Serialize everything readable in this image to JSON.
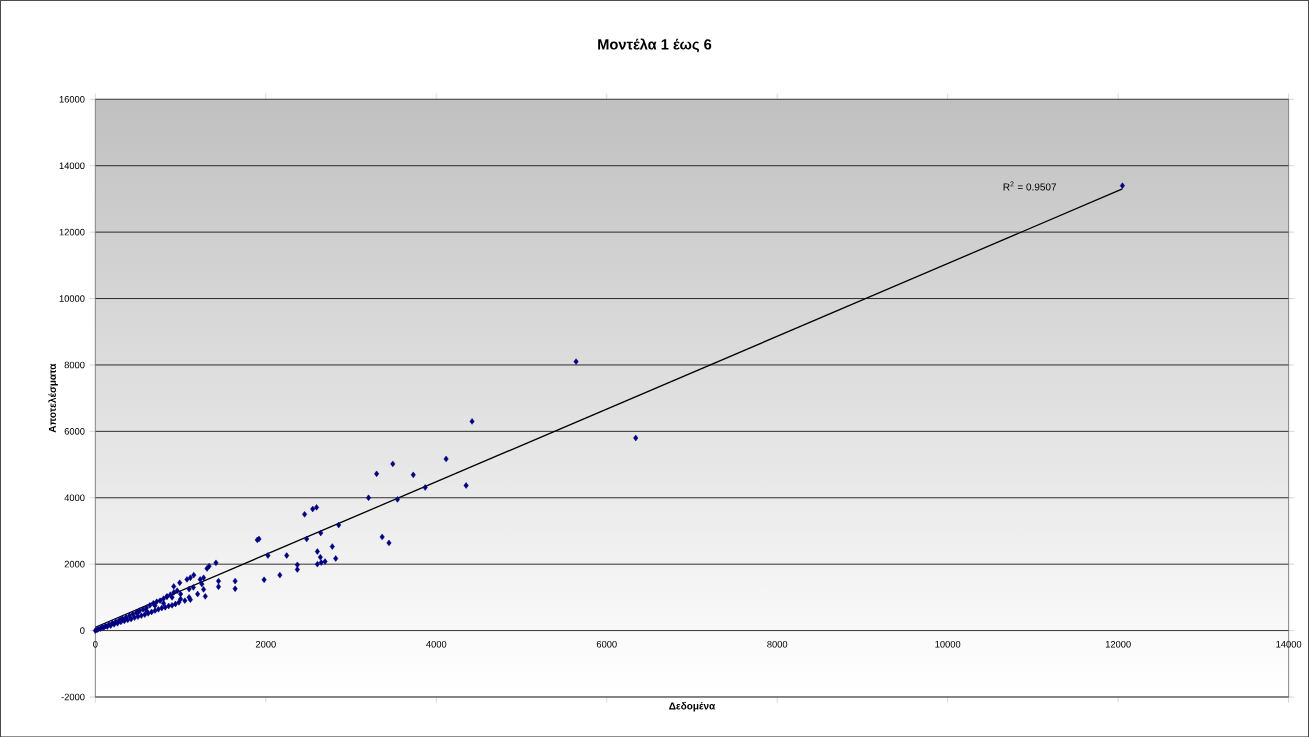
{
  "chart_data": {
    "type": "scatter",
    "title": "Μοντέλα 1 έως 6",
    "xlabel": "Δεδομένα",
    "ylabel": "Αποτελέσματα",
    "xlim": [
      0,
      14000
    ],
    "ylim": [
      -2000,
      16000
    ],
    "xticks": [
      0,
      2000,
      4000,
      6000,
      8000,
      10000,
      12000,
      14000
    ],
    "yticks": [
      -2000,
      0,
      2000,
      4000,
      6000,
      8000,
      10000,
      12000,
      14000,
      16000
    ],
    "grid": "y",
    "annotations": [
      "R$^{2}$ = 0.9507"
    ],
    "series": [
      {
        "marker": "diamond",
        "color": "#000080",
        "x": [
          12050,
          5640,
          6340,
          4420,
          4115,
          3490,
          3300,
          3730,
          4350,
          3870,
          3545,
          3205,
          2595,
          2550,
          2455,
          2855,
          2645,
          2480,
          1920,
          1900,
          3365,
          3445,
          2025,
          2245,
          2780,
          2605,
          2640,
          2820,
          2695,
          2650,
          2605,
          2370,
          2370,
          2165,
          1980,
          1415,
          1335,
          1310,
          990,
          1075,
          1115,
          1155,
          1230,
          1270,
          1445,
          1445,
          1640,
          1640,
          1270,
          1290,
          1115,
          920,
          840,
          20,
          40,
          60,
          80,
          100,
          120,
          140,
          160,
          180,
          200,
          220,
          240,
          260,
          280,
          300,
          320,
          340,
          360,
          380,
          400,
          420,
          440,
          460,
          480,
          500,
          520,
          540,
          560,
          580,
          600,
          620,
          640,
          660,
          680,
          700,
          720,
          740,
          760,
          780,
          800,
          820,
          840,
          860,
          880,
          900,
          920,
          940,
          960,
          980,
          1000,
          1050,
          1100,
          1150,
          1200,
          1250,
          1100,
          1000,
          900,
          700,
          500,
          300,
          600,
          800,
          0
        ],
        "values": [
          13400,
          8100,
          5800,
          6300,
          5170,
          5020,
          4720,
          4690,
          4370,
          4310,
          3950,
          4000,
          3710,
          3660,
          3500,
          3180,
          2940,
          2760,
          2760,
          2730,
          2820,
          2640,
          2260,
          2260,
          2530,
          2380,
          2210,
          2170,
          2080,
          2050,
          2000,
          1980,
          1840,
          1670,
          1530,
          2040,
          1940,
          1870,
          1440,
          1540,
          1590,
          1670,
          1540,
          1590,
          1490,
          1320,
          1490,
          1260,
          1240,
          1030,
          930,
          1330,
          1030,
          20,
          50,
          60,
          100,
          90,
          140,
          120,
          180,
          150,
          230,
          190,
          270,
          220,
          310,
          260,
          360,
          290,
          400,
          320,
          450,
          350,
          500,
          390,
          540,
          420,
          600,
          450,
          640,
          480,
          690,
          520,
          760,
          560,
          820,
          600,
          870,
          640,
          900,
          680,
          960,
          700,
          1020,
          740,
          1080,
          760,
          1150,
          800,
          1200,
          850,
          1100,
          900,
          1000,
          1300,
          1100,
          1400,
          1250,
          950,
          1000,
          750,
          550,
          320,
          600,
          820,
          0
        ]
      },
      {
        "type": "line",
        "marker": "none",
        "color": "#000000",
        "x": [
          0,
          12050
        ],
        "values": [
          100,
          13300
        ]
      }
    ]
  }
}
